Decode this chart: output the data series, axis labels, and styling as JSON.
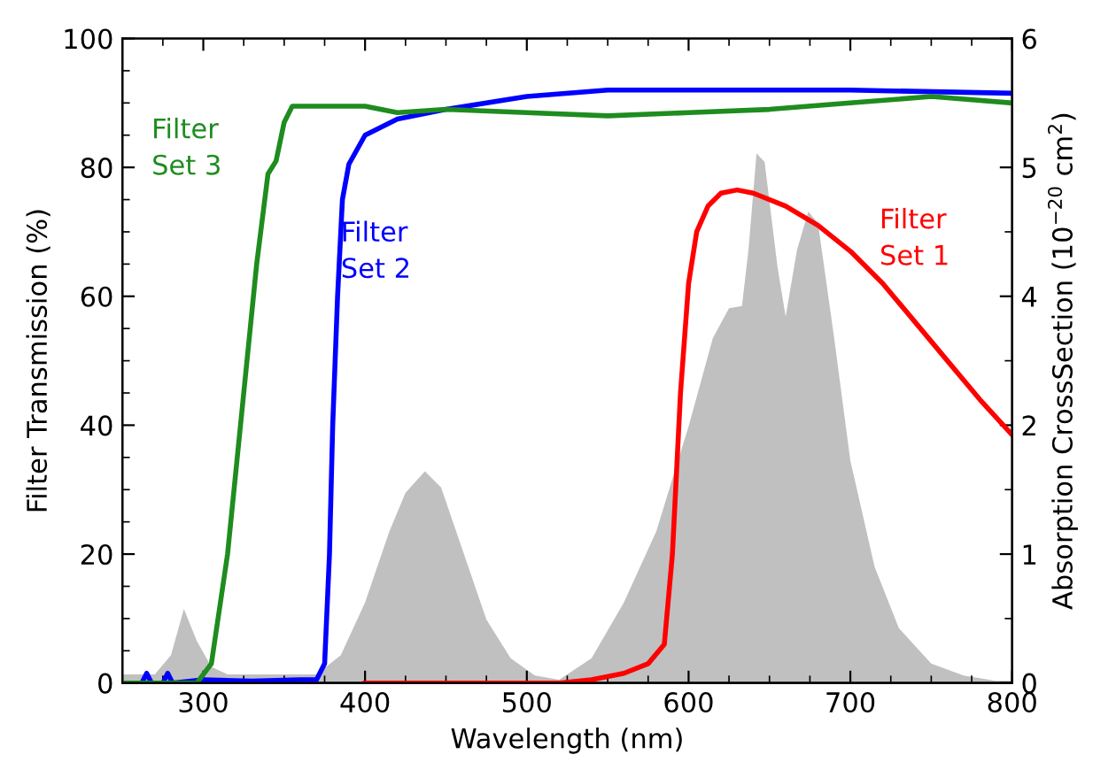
{
  "chart_data": {
    "type": "line",
    "xlabel": "Wavelength (nm)",
    "ylabel": "Filter Transmission (%)",
    "y2label": "Absorption CrossSection (10$^{−20}$ cm$^{2}$)",
    "xlim": [
      250,
      800
    ],
    "xticks": [
      300,
      400,
      500,
      600,
      700,
      800
    ],
    "ylim": [
      0,
      100
    ],
    "yticks": [
      0,
      20,
      40,
      60,
      80,
      100
    ],
    "y2lim": [
      0,
      6
    ],
    "y2ticks": [
      0,
      {
        "value": 1.2,
        "label": "1"
      },
      {
        "value": 2.4,
        "label": "2"
      },
      {
        "value": 3.6,
        "label": "4"
      },
      {
        "value": 4.8,
        "label": "5"
      },
      6
    ],
    "grid": false,
    "legend": false,
    "marker": "none",
    "line_style": "solid",
    "series": [
      {
        "type": "area",
        "axis": "y2",
        "color": "#c0c0c0",
        "x": [
          250,
          270,
          280,
          288,
          296,
          305,
          315,
          370,
          385,
          400,
          415,
          425,
          437,
          447,
          460,
          475,
          490,
          505,
          520,
          540,
          560,
          580,
          600,
          615,
          625,
          633,
          637,
          642,
          647,
          655,
          660,
          667,
          674,
          680,
          690,
          700,
          715,
          730,
          750,
          770,
          790,
          800
        ],
        "values": [
          0.08,
          0.08,
          0.26,
          0.69,
          0.39,
          0.15,
          0.08,
          0.08,
          0.26,
          0.75,
          1.41,
          1.77,
          1.97,
          1.82,
          1.25,
          0.59,
          0.23,
          0.07,
          0.03,
          0.23,
          0.75,
          1.41,
          2.39,
          3.21,
          3.49,
          3.51,
          4.03,
          4.93,
          4.85,
          3.87,
          3.41,
          4.03,
          4.39,
          4.28,
          3.21,
          2.07,
          1.08,
          0.51,
          0.18,
          0.07,
          0.02,
          0.02
        ]
      },
      {
        "name": "Filter\nSet 1",
        "color": "#ff0000",
        "x": [
          400,
          520,
          540,
          560,
          575,
          585,
          590,
          595,
          600,
          605,
          612,
          620,
          630,
          640,
          660,
          680,
          700,
          720,
          740,
          760,
          780,
          800
        ],
        "values": [
          0,
          0,
          0.5,
          1.5,
          3,
          6,
          20,
          45,
          62,
          70,
          74,
          76,
          76.5,
          76,
          74,
          71,
          67,
          62,
          56,
          50,
          44,
          38.5
        ]
      },
      {
        "name": "Filter\nSet 2",
        "color": "#0000ff",
        "x": [
          250,
          262,
          265,
          268,
          275,
          278,
          281,
          300,
          330,
          360,
          370,
          375,
          378,
          380,
          383,
          386,
          390,
          400,
          420,
          450,
          500,
          550,
          600,
          700,
          800
        ],
        "values": [
          0,
          0,
          1.5,
          0,
          0,
          1.5,
          0,
          0.5,
          0.3,
          0.5,
          0.5,
          3,
          20,
          40,
          60,
          75,
          80.5,
          85,
          87.5,
          89,
          91,
          92,
          92,
          92,
          91.5
        ]
      },
      {
        "name": "Filter\nSet 3",
        "color": "#1e8c1e",
        "x": [
          250,
          296,
          305,
          315,
          325,
          333,
          340,
          345,
          350,
          355,
          370,
          400,
          420,
          450,
          500,
          550,
          600,
          650,
          700,
          750,
          800
        ],
        "values": [
          0,
          0,
          3,
          20,
          45,
          65,
          79,
          81,
          87,
          89.5,
          89.5,
          89.5,
          88.5,
          89,
          88.5,
          88,
          88.5,
          89,
          90,
          91,
          90
        ]
      }
    ]
  }
}
